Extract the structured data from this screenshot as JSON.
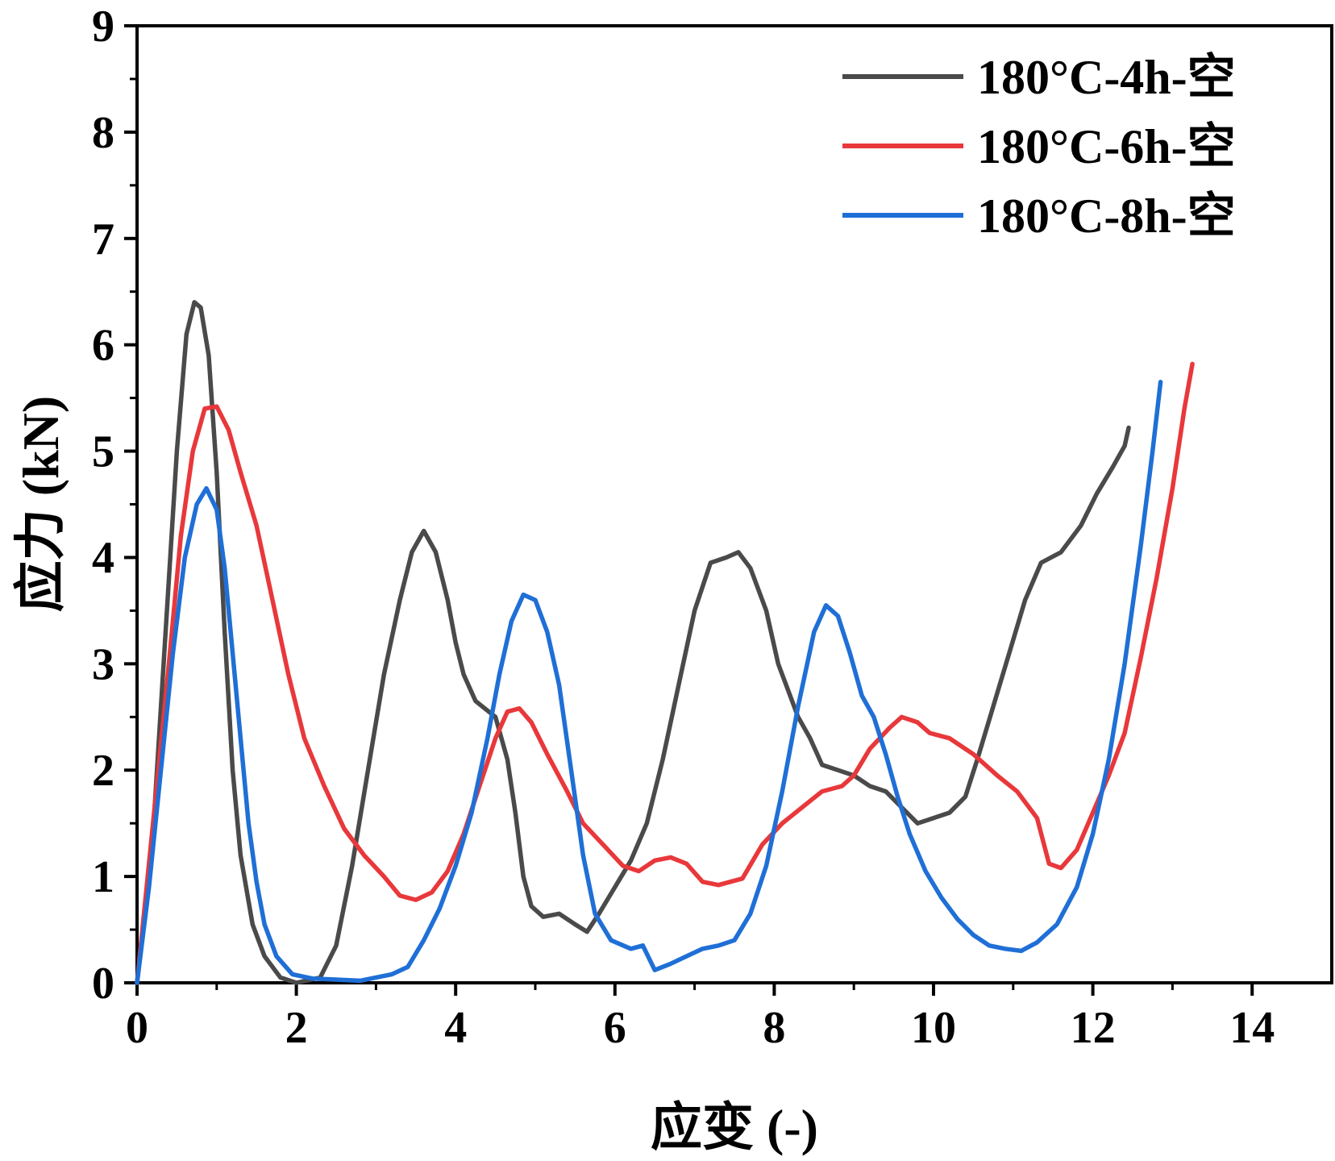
{
  "chart_data": {
    "type": "line",
    "xlabel": "应变 (-)",
    "ylabel": "应力 (kN)",
    "xlim": [
      0,
      15
    ],
    "ylim": [
      0,
      9
    ],
    "x_ticks": [
      0,
      2,
      4,
      6,
      8,
      10,
      12,
      14
    ],
    "y_ticks": [
      0,
      1,
      2,
      3,
      4,
      5,
      6,
      7,
      8,
      9
    ],
    "grid": false,
    "legend_position": "top-right",
    "series": [
      {
        "name": "180°C-4h-空",
        "color": "#4a4a4a",
        "points": [
          [
            0,
            0
          ],
          [
            0.2,
            1.4
          ],
          [
            0.35,
            3.2
          ],
          [
            0.5,
            5.0
          ],
          [
            0.62,
            6.1
          ],
          [
            0.72,
            6.4
          ],
          [
            0.8,
            6.35
          ],
          [
            0.9,
            5.9
          ],
          [
            1.0,
            4.8
          ],
          [
            1.1,
            3.3
          ],
          [
            1.2,
            2.0
          ],
          [
            1.3,
            1.2
          ],
          [
            1.45,
            0.55
          ],
          [
            1.6,
            0.25
          ],
          [
            1.8,
            0.05
          ],
          [
            2.0,
            0.0
          ],
          [
            2.3,
            0.05
          ],
          [
            2.5,
            0.35
          ],
          [
            2.7,
            1.1
          ],
          [
            2.9,
            2.0
          ],
          [
            3.1,
            2.9
          ],
          [
            3.3,
            3.6
          ],
          [
            3.45,
            4.05
          ],
          [
            3.6,
            4.25
          ],
          [
            3.75,
            4.05
          ],
          [
            3.9,
            3.6
          ],
          [
            4.0,
            3.2
          ],
          [
            4.1,
            2.9
          ],
          [
            4.25,
            2.65
          ],
          [
            4.5,
            2.5
          ],
          [
            4.65,
            2.1
          ],
          [
            4.75,
            1.6
          ],
          [
            4.85,
            1.0
          ],
          [
            4.95,
            0.72
          ],
          [
            5.1,
            0.62
          ],
          [
            5.3,
            0.65
          ],
          [
            5.5,
            0.55
          ],
          [
            5.65,
            0.48
          ],
          [
            5.8,
            0.65
          ],
          [
            6.0,
            0.9
          ],
          [
            6.2,
            1.15
          ],
          [
            6.4,
            1.5
          ],
          [
            6.6,
            2.1
          ],
          [
            6.8,
            2.8
          ],
          [
            7.0,
            3.5
          ],
          [
            7.2,
            3.95
          ],
          [
            7.4,
            4.0
          ],
          [
            7.55,
            4.05
          ],
          [
            7.7,
            3.9
          ],
          [
            7.9,
            3.5
          ],
          [
            8.05,
            3.0
          ],
          [
            8.15,
            2.8
          ],
          [
            8.3,
            2.5
          ],
          [
            8.45,
            2.3
          ],
          [
            8.6,
            2.05
          ],
          [
            8.8,
            2.0
          ],
          [
            9.0,
            1.95
          ],
          [
            9.2,
            1.85
          ],
          [
            9.4,
            1.8
          ],
          [
            9.6,
            1.65
          ],
          [
            9.8,
            1.5
          ],
          [
            10.0,
            1.55
          ],
          [
            10.2,
            1.6
          ],
          [
            10.4,
            1.75
          ],
          [
            10.55,
            2.1
          ],
          [
            10.75,
            2.6
          ],
          [
            10.95,
            3.1
          ],
          [
            11.15,
            3.6
          ],
          [
            11.35,
            3.95
          ],
          [
            11.6,
            4.05
          ],
          [
            11.85,
            4.3
          ],
          [
            12.05,
            4.6
          ],
          [
            12.25,
            4.85
          ],
          [
            12.4,
            5.05
          ],
          [
            12.45,
            5.22
          ]
        ]
      },
      {
        "name": "180°C-6h-空",
        "color": "#e8383b",
        "points": [
          [
            0,
            0
          ],
          [
            0.2,
            1.5
          ],
          [
            0.4,
            3.0
          ],
          [
            0.55,
            4.2
          ],
          [
            0.7,
            5.0
          ],
          [
            0.85,
            5.4
          ],
          [
            1.0,
            5.42
          ],
          [
            1.15,
            5.2
          ],
          [
            1.3,
            4.8
          ],
          [
            1.5,
            4.3
          ],
          [
            1.7,
            3.6
          ],
          [
            1.9,
            2.9
          ],
          [
            2.1,
            2.3
          ],
          [
            2.35,
            1.85
          ],
          [
            2.6,
            1.45
          ],
          [
            2.85,
            1.2
          ],
          [
            3.1,
            1.0
          ],
          [
            3.3,
            0.82
          ],
          [
            3.5,
            0.78
          ],
          [
            3.7,
            0.85
          ],
          [
            3.9,
            1.05
          ],
          [
            4.1,
            1.4
          ],
          [
            4.3,
            1.85
          ],
          [
            4.5,
            2.3
          ],
          [
            4.65,
            2.55
          ],
          [
            4.8,
            2.58
          ],
          [
            4.95,
            2.45
          ],
          [
            5.15,
            2.15
          ],
          [
            5.4,
            1.8
          ],
          [
            5.6,
            1.5
          ],
          [
            5.85,
            1.3
          ],
          [
            6.1,
            1.1
          ],
          [
            6.3,
            1.05
          ],
          [
            6.5,
            1.15
          ],
          [
            6.7,
            1.18
          ],
          [
            6.9,
            1.12
          ],
          [
            7.1,
            0.95
          ],
          [
            7.3,
            0.92
          ],
          [
            7.6,
            0.98
          ],
          [
            7.85,
            1.3
          ],
          [
            8.1,
            1.5
          ],
          [
            8.35,
            1.65
          ],
          [
            8.6,
            1.8
          ],
          [
            8.85,
            1.85
          ],
          [
            9.0,
            1.95
          ],
          [
            9.2,
            2.2
          ],
          [
            9.45,
            2.4
          ],
          [
            9.6,
            2.5
          ],
          [
            9.8,
            2.45
          ],
          [
            9.95,
            2.35
          ],
          [
            10.2,
            2.3
          ],
          [
            10.5,
            2.15
          ],
          [
            10.8,
            1.95
          ],
          [
            11.05,
            1.8
          ],
          [
            11.3,
            1.55
          ],
          [
            11.45,
            1.12
          ],
          [
            11.6,
            1.08
          ],
          [
            11.8,
            1.25
          ],
          [
            12.0,
            1.6
          ],
          [
            12.2,
            1.95
          ],
          [
            12.4,
            2.35
          ],
          [
            12.6,
            3.05
          ],
          [
            12.8,
            3.8
          ],
          [
            13.0,
            4.65
          ],
          [
            13.15,
            5.4
          ],
          [
            13.25,
            5.82
          ]
        ]
      },
      {
        "name": "180°C-8h-空",
        "color": "#1f6fd6",
        "points": [
          [
            0,
            0
          ],
          [
            0.15,
            0.9
          ],
          [
            0.3,
            2.0
          ],
          [
            0.45,
            3.1
          ],
          [
            0.6,
            4.0
          ],
          [
            0.75,
            4.5
          ],
          [
            0.87,
            4.65
          ],
          [
            1.0,
            4.45
          ],
          [
            1.1,
            3.9
          ],
          [
            1.2,
            3.1
          ],
          [
            1.3,
            2.3
          ],
          [
            1.4,
            1.5
          ],
          [
            1.5,
            0.95
          ],
          [
            1.6,
            0.55
          ],
          [
            1.75,
            0.25
          ],
          [
            1.95,
            0.08
          ],
          [
            2.2,
            0.04
          ],
          [
            2.5,
            0.03
          ],
          [
            2.8,
            0.02
          ],
          [
            3.0,
            0.05
          ],
          [
            3.2,
            0.08
          ],
          [
            3.4,
            0.15
          ],
          [
            3.6,
            0.4
          ],
          [
            3.8,
            0.7
          ],
          [
            4.0,
            1.1
          ],
          [
            4.2,
            1.6
          ],
          [
            4.4,
            2.3
          ],
          [
            4.55,
            2.9
          ],
          [
            4.7,
            3.4
          ],
          [
            4.85,
            3.65
          ],
          [
            5.0,
            3.6
          ],
          [
            5.15,
            3.3
          ],
          [
            5.3,
            2.8
          ],
          [
            5.45,
            2.0
          ],
          [
            5.6,
            1.2
          ],
          [
            5.75,
            0.65
          ],
          [
            5.95,
            0.4
          ],
          [
            6.2,
            0.32
          ],
          [
            6.35,
            0.35
          ],
          [
            6.5,
            0.12
          ],
          [
            6.7,
            0.18
          ],
          [
            6.9,
            0.25
          ],
          [
            7.1,
            0.32
          ],
          [
            7.3,
            0.35
          ],
          [
            7.5,
            0.4
          ],
          [
            7.7,
            0.65
          ],
          [
            7.9,
            1.1
          ],
          [
            8.1,
            1.8
          ],
          [
            8.3,
            2.6
          ],
          [
            8.5,
            3.3
          ],
          [
            8.65,
            3.55
          ],
          [
            8.8,
            3.45
          ],
          [
            8.95,
            3.1
          ],
          [
            9.1,
            2.7
          ],
          [
            9.25,
            2.5
          ],
          [
            9.4,
            2.15
          ],
          [
            9.55,
            1.75
          ],
          [
            9.7,
            1.4
          ],
          [
            9.9,
            1.05
          ],
          [
            10.1,
            0.8
          ],
          [
            10.3,
            0.6
          ],
          [
            10.5,
            0.45
          ],
          [
            10.7,
            0.35
          ],
          [
            10.9,
            0.32
          ],
          [
            11.1,
            0.3
          ],
          [
            11.3,
            0.38
          ],
          [
            11.55,
            0.55
          ],
          [
            11.8,
            0.9
          ],
          [
            12.0,
            1.4
          ],
          [
            12.2,
            2.1
          ],
          [
            12.4,
            3.0
          ],
          [
            12.6,
            4.1
          ],
          [
            12.75,
            5.0
          ],
          [
            12.85,
            5.65
          ]
        ]
      }
    ]
  }
}
